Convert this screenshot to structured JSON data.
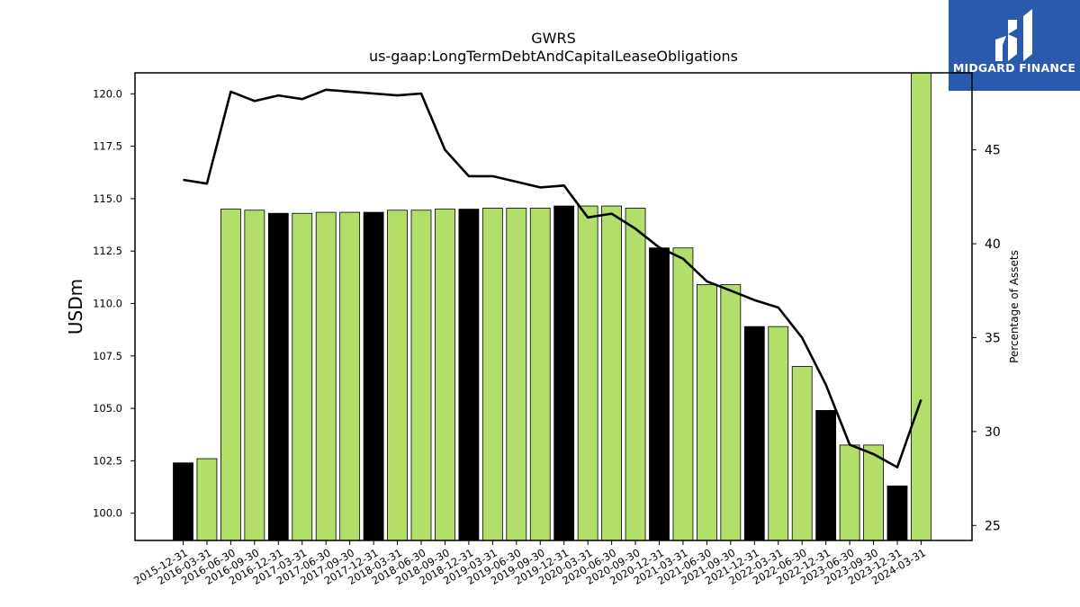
{
  "brand": {
    "name": "MIDGARD FINANCE",
    "background": "#2a5aab",
    "icon": "midgard-m-logo-icon"
  },
  "chart_data": {
    "type": "bar",
    "title": "GWRS",
    "subtitle": "us-gaap:LongTermDebtAndCapitalLeaseObligations",
    "ylabel": "USDm",
    "y2label": "Percentage of Assets",
    "ylim": [
      98.7,
      121.0
    ],
    "y2lim": [
      24.2,
      49.1
    ],
    "yticks": [
      "100.0",
      "102.5",
      "105.0",
      "107.5",
      "110.0",
      "112.5",
      "115.0",
      "117.5",
      "120.0"
    ],
    "y2ticks": [
      "25",
      "30",
      "35",
      "40",
      "45"
    ],
    "categories": [
      "2015-12-31",
      "2016-03-31",
      "2016-06-30",
      "2016-09-30",
      "2016-12-31",
      "2017-03-31",
      "2017-06-30",
      "2017-09-30",
      "2017-12-31",
      "2018-03-31",
      "2018-06-30",
      "2018-09-30",
      "2018-12-31",
      "2019-03-31",
      "2019-06-30",
      "2019-09-30",
      "2019-12-31",
      "2020-03-31",
      "2020-06-30",
      "2020-09-30",
      "2020-12-31",
      "2021-03-31",
      "2021-06-30",
      "2021-09-30",
      "2021-12-31",
      "2022-03-31",
      "2022-06-30",
      "2022-12-31",
      "2023-06-30",
      "2023-09-30",
      "2023-12-31",
      "2024-03-31"
    ],
    "series": [
      {
        "type": "bar",
        "axis": "left",
        "values": [
          102.4,
          102.6,
          114.5,
          114.45,
          114.3,
          114.3,
          114.35,
          114.35,
          114.35,
          114.45,
          114.45,
          114.5,
          114.5,
          114.55,
          114.55,
          114.55,
          114.65,
          114.65,
          114.65,
          114.55,
          112.65,
          112.65,
          110.9,
          110.9,
          108.9,
          108.9,
          107.0,
          104.9,
          103.25,
          103.25,
          101.3,
          121.0
        ],
        "highlight": [
          true,
          false,
          false,
          false,
          true,
          false,
          false,
          false,
          true,
          false,
          false,
          false,
          true,
          false,
          false,
          false,
          true,
          false,
          false,
          false,
          true,
          false,
          false,
          false,
          true,
          false,
          false,
          true,
          false,
          false,
          true,
          false
        ]
      },
      {
        "type": "line",
        "axis": "right",
        "values": [
          43.4,
          43.2,
          48.1,
          47.6,
          47.9,
          47.7,
          48.2,
          48.1,
          48.0,
          47.9,
          48.0,
          45.0,
          43.6,
          43.6,
          43.3,
          43.0,
          43.1,
          41.4,
          41.6,
          40.8,
          39.8,
          39.2,
          38.0,
          37.5,
          37.0,
          36.6,
          35.0,
          32.5,
          29.3,
          28.8,
          28.1,
          31.7
        ]
      }
    ],
    "colors": {
      "bar": "#b3de69",
      "bar_highlight": "#000000",
      "line": "#000000"
    },
    "grid": false,
    "legend": "none"
  }
}
